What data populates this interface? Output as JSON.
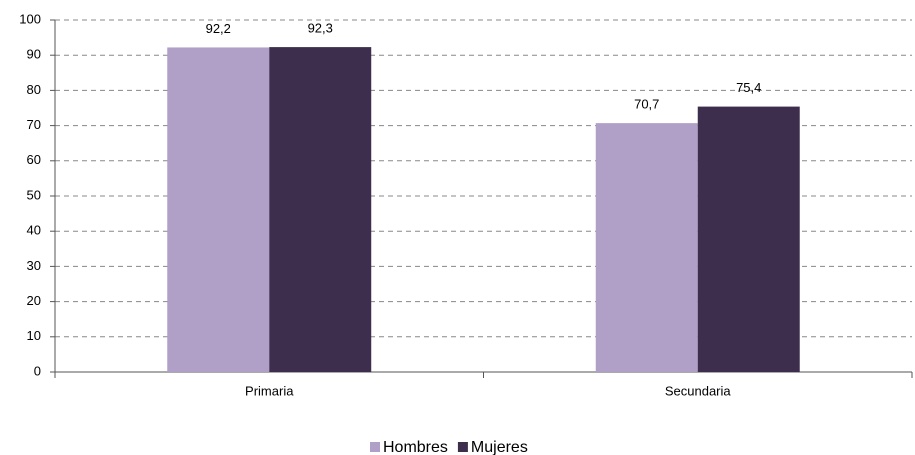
{
  "chart_data": {
    "type": "bar",
    "categories": [
      "Primaria",
      "Secundaria"
    ],
    "series": [
      {
        "name": "Hombres",
        "color": "#b09fc6",
        "values": [
          92.2,
          70.7
        ],
        "value_labels": [
          "92,2",
          "70,7"
        ]
      },
      {
        "name": "Mujeres",
        "color": "#3d2e4d",
        "values": [
          92.3,
          75.4
        ],
        "value_labels": [
          "92,3",
          "75,4"
        ]
      }
    ],
    "ylim": [
      0,
      100
    ],
    "yticks": [
      0,
      10,
      20,
      30,
      40,
      50,
      60,
      70,
      80,
      90,
      100
    ],
    "grid": true,
    "legend": "bottom"
  }
}
